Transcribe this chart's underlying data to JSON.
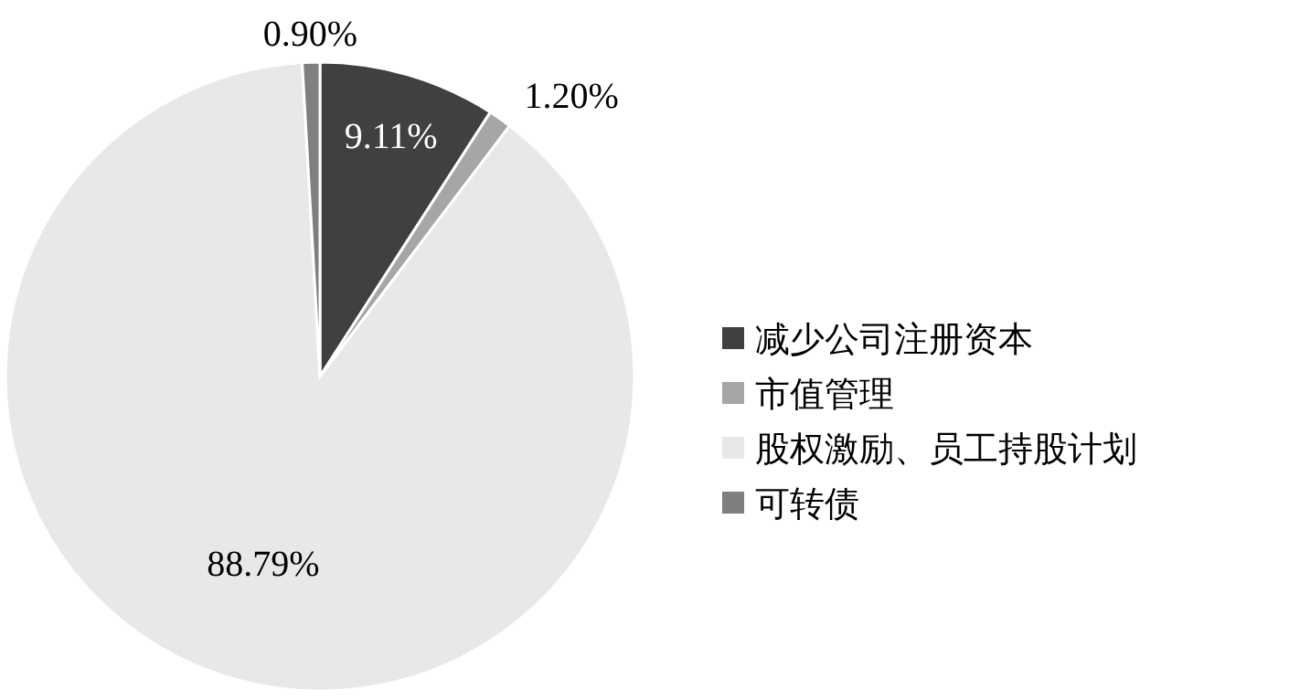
{
  "chart_data": {
    "type": "pie",
    "categories": [
      "减少公司注册资本",
      "市值管理",
      "股权激励、员工持股计划",
      "可转债"
    ],
    "values": [
      9.11,
      1.2,
      88.79,
      0.9
    ],
    "colors": [
      "#404040",
      "#a6a6a6",
      "#e8e8e8",
      "#7f7f7f"
    ],
    "value_labels": [
      "9.11%",
      "1.20%",
      "88.79%",
      "0.90%"
    ],
    "legend": "right"
  }
}
